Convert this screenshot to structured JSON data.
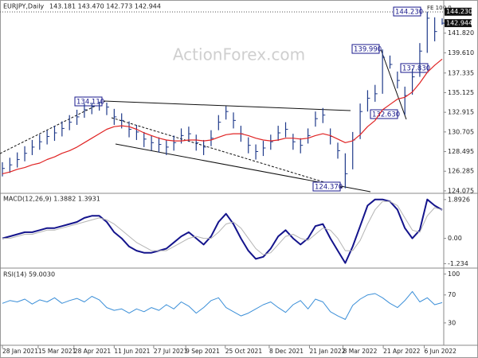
{
  "chart_data": [
    {
      "type": "ohlc",
      "title": "EURJPY,Daily",
      "quote": "143.181 143.470 142.773 142.944",
      "watermark": "ActionForex.com",
      "color": "#1f3a8a",
      "high": [
        127.3,
        127.8,
        128.4,
        129.1,
        129.8,
        130.4,
        130.9,
        131.4,
        131.9,
        132.6,
        133.2,
        133.9,
        134.0,
        134.11,
        134.0,
        133.3,
        132.8,
        131.9,
        131.5,
        130.7,
        130.3,
        130.1,
        129.8,
        130.3,
        131.1,
        131.3,
        130.4,
        129.8,
        130.9,
        132.6,
        133.6,
        132.9,
        131.4,
        130.1,
        129.3,
        129.7,
        130.4,
        131.4,
        131.8,
        130.5,
        130.0,
        131.1,
        133.0,
        133.4,
        131.1,
        129.5,
        128.3,
        130.7,
        133.9,
        135.4,
        136.0,
        139.99,
        139.3,
        137.5,
        135.8,
        137.8,
        140.7,
        144.23,
        143.6,
        143.47
      ],
      "low": [
        125.7,
        126.1,
        126.7,
        127.4,
        128.1,
        128.7,
        129.3,
        129.7,
        130.2,
        130.9,
        131.5,
        132.3,
        132.7,
        133.1,
        132.6,
        131.5,
        131.1,
        130.1,
        129.8,
        129.0,
        128.6,
        128.4,
        128.1,
        128.6,
        129.4,
        129.6,
        128.6,
        128.1,
        129.1,
        130.9,
        132.1,
        131.1,
        129.6,
        128.3,
        127.6,
        128.0,
        128.7,
        129.7,
        130.1,
        128.7,
        128.3,
        129.4,
        131.3,
        131.7,
        129.3,
        127.7,
        124.37,
        126.5,
        129.9,
        133.0,
        134.1,
        135.0,
        137.83,
        135.6,
        132.63,
        134.9,
        136.9,
        139.6,
        140.9,
        142.773
      ],
      "close": [
        126.6,
        127.0,
        127.6,
        128.3,
        129.0,
        129.6,
        130.2,
        130.6,
        131.1,
        131.8,
        132.4,
        133.2,
        133.6,
        134.0,
        133.5,
        132.4,
        132.0,
        131.0,
        130.7,
        129.9,
        129.5,
        129.3,
        129.0,
        129.5,
        130.3,
        130.5,
        129.5,
        129.0,
        130.0,
        131.8,
        133.0,
        132.0,
        130.5,
        129.2,
        128.5,
        128.9,
        129.6,
        130.6,
        131.0,
        129.6,
        129.2,
        130.3,
        132.2,
        132.6,
        130.2,
        128.6,
        126.0,
        129.8,
        133.0,
        134.5,
        135.0,
        139.1,
        138.3,
        136.5,
        134.8,
        136.9,
        139.8,
        143.5,
        142.0,
        142.944
      ],
      "series": [
        {
          "color": "#e02424",
          "values": [
            126.0,
            126.2,
            126.5,
            126.7,
            127.0,
            127.2,
            127.6,
            127.9,
            128.3,
            128.6,
            129.0,
            129.5,
            130.0,
            130.5,
            131.0,
            131.3,
            131.4,
            131.3,
            131.0,
            130.6,
            130.3,
            130.0,
            129.8,
            129.7,
            129.7,
            129.8,
            129.8,
            129.7,
            129.8,
            130.1,
            130.4,
            130.5,
            130.5,
            130.3,
            130.0,
            129.8,
            129.7,
            129.8,
            130.0,
            130.0,
            129.9,
            130.0,
            130.3,
            130.5,
            130.3,
            129.9,
            129.5,
            129.7,
            130.4,
            131.3,
            132.0,
            133.2,
            133.8,
            134.4,
            134.6,
            135.2,
            136.2,
            137.4,
            138.2,
            138.9
          ]
        }
      ],
      "ylim": [
        123.8,
        145.1
      ],
      "yticks": [
        124.075,
        126.285,
        128.495,
        130.705,
        132.915,
        135.125,
        137.335,
        {
          "value": 139.61,
          "label": "139.610"
        },
        {
          "value": 141.82,
          "label": "141.820"
        }
      ],
      "price_tags": [
        {
          "value": 144.23,
          "label": "144.230"
        },
        142.944
      ],
      "annotations": [
        "134.110",
        "139.990",
        "137.830",
        "132.630",
        "124.370",
        "144.230",
        "FE 100.0"
      ]
    },
    {
      "type": "line",
      "title": "MACD(12,26,9) 1.3882 1.3931",
      "series": [
        {
          "color": "#14148c",
          "width": 2,
          "values": [
            0.0,
            0.1,
            0.2,
            0.3,
            0.3,
            0.4,
            0.5,
            0.5,
            0.6,
            0.7,
            0.8,
            1.0,
            1.1,
            1.1,
            0.8,
            0.3,
            0.0,
            -0.4,
            -0.6,
            -0.7,
            -0.7,
            -0.6,
            -0.5,
            -0.2,
            0.1,
            0.3,
            0.0,
            -0.3,
            0.1,
            0.8,
            1.2,
            0.7,
            0.0,
            -0.6,
            -1.0,
            -0.9,
            -0.5,
            0.1,
            0.4,
            0.0,
            -0.3,
            0.0,
            0.6,
            0.7,
            0.0,
            -0.6,
            -1.2,
            -0.4,
            0.6,
            1.6,
            1.9,
            1.9,
            1.8,
            1.4,
            0.5,
            0.0,
            0.4,
            1.9,
            1.6,
            1.3882
          ]
        },
        {
          "color": "#b4b4b4",
          "width": 1,
          "values": [
            0.0,
            0.0,
            0.1,
            0.2,
            0.2,
            0.3,
            0.4,
            0.4,
            0.5,
            0.6,
            0.7,
            0.8,
            0.9,
            1.0,
            0.9,
            0.7,
            0.4,
            0.1,
            -0.2,
            -0.4,
            -0.6,
            -0.6,
            -0.6,
            -0.4,
            -0.2,
            0.0,
            0.1,
            0.0,
            0.0,
            0.3,
            0.7,
            0.8,
            0.5,
            0.0,
            -0.5,
            -0.8,
            -0.7,
            -0.3,
            0.1,
            0.2,
            0.0,
            -0.1,
            0.2,
            0.5,
            0.4,
            0.0,
            -0.6,
            -0.6,
            -0.1,
            0.7,
            1.4,
            1.8,
            1.8,
            1.6,
            1.0,
            0.4,
            0.3,
            1.1,
            1.5,
            1.3931
          ]
        }
      ],
      "ylim": [
        -1.45,
        2.12
      ],
      "yticks": [
        1.8926,
        {
          "value": 0,
          "label": "0.00"
        },
        -1.234
      ]
    },
    {
      "type": "line",
      "title": "RSI(14) 59.0030",
      "series": [
        {
          "color": "#3b8fd8",
          "width": 1,
          "values": [
            58,
            62,
            60,
            64,
            57,
            63,
            60,
            66,
            58,
            62,
            65,
            60,
            68,
            63,
            52,
            48,
            50,
            44,
            50,
            46,
            52,
            48,
            56,
            50,
            60,
            54,
            44,
            52,
            62,
            66,
            52,
            46,
            40,
            44,
            50,
            56,
            60,
            52,
            45,
            56,
            62,
            50,
            64,
            60,
            46,
            40,
            35,
            55,
            64,
            70,
            72,
            66,
            58,
            52,
            62,
            75,
            60,
            66,
            56,
            59.003
          ]
        }
      ],
      "ylim": [
        -2,
        105
      ],
      "yticks": [
        100,
        70,
        30
      ],
      "xlim": [
        0,
        59
      ],
      "xticks": [
        {
          "value": 0,
          "label": "28 Jan 2021"
        },
        {
          "value": 4.8,
          "label": "15 Mar 2021"
        },
        {
          "value": 9.6,
          "label": "28 Apr 2021"
        },
        {
          "value": 15,
          "label": "11 Jun 2021"
        },
        {
          "value": 20.3,
          "label": "27 Jul 2021"
        },
        {
          "value": 24.6,
          "label": "9 Sep 2021"
        },
        {
          "value": 29.9,
          "label": "25 Oct 2021"
        },
        {
          "value": 35.8,
          "label": "8 Dec 2021"
        },
        {
          "value": 41.2,
          "label": "21 Jan 2022"
        },
        {
          "value": 45.7,
          "label": "8 Mar 2022"
        },
        {
          "value": 51.1,
          "label": "21 Apr 2022"
        },
        {
          "value": 56.6,
          "label": "6 Jun 2022"
        }
      ]
    }
  ]
}
